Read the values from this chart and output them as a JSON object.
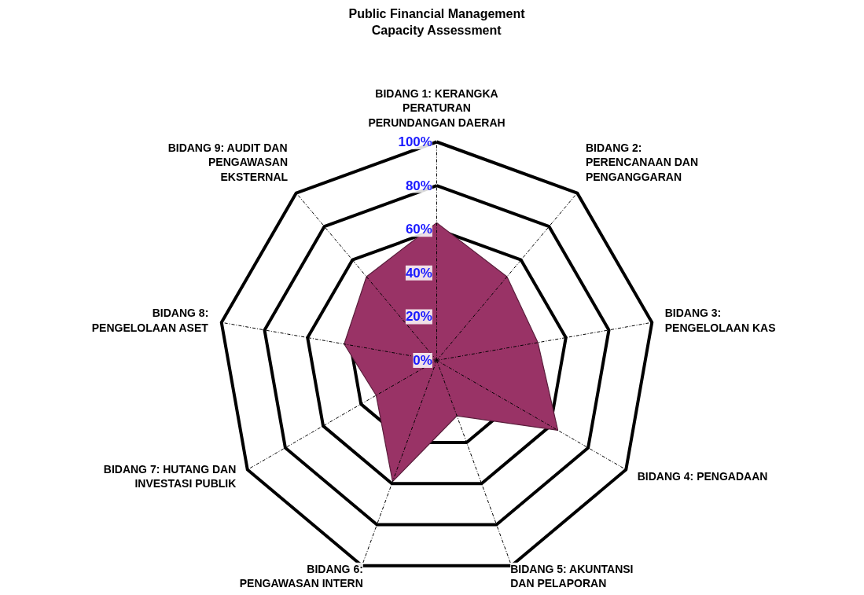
{
  "chart_data": {
    "type": "radar",
    "title": "Public Financial Management\nCapacity Assessment",
    "categories": [
      "BIDANG 1: KERANGKA\nPERATURAN\nPERUNDANGAN DAERAH",
      "BIDANG 2:\nPERENCANAAN DAN\nPENGANGGARAN",
      "BIDANG 3:\nPENGELOLAAN KAS",
      "BIDANG 4: PENGADAAN",
      "BIDANG 5: AKUNTANSI\nDAN PELAPORAN",
      "BIDANG 6:\nPENGAWASAN INTERN",
      "BIDANG 7: HUTANG DAN\nINVESTASI PUBLIK",
      "BIDANG 8:\nPENGELOLAAN ASET",
      "BIDANG 9: AUDIT DAN\nPENGAWASAN\nEKSTERNAL"
    ],
    "series": [
      {
        "color": "#993366",
        "values": [
          63,
          50,
          47,
          64,
          27,
          59,
          32,
          43,
          50
        ]
      }
    ],
    "ylim": [
      0,
      100
    ],
    "yticks": [
      {
        "value": 0,
        "label": "0%"
      },
      {
        "value": 20,
        "label": "20%"
      },
      {
        "value": 40,
        "label": "40%"
      },
      {
        "value": 60,
        "label": "60%"
      },
      {
        "value": 80,
        "label": "80%"
      },
      {
        "value": 100,
        "label": "100%"
      }
    ],
    "grid": true
  }
}
